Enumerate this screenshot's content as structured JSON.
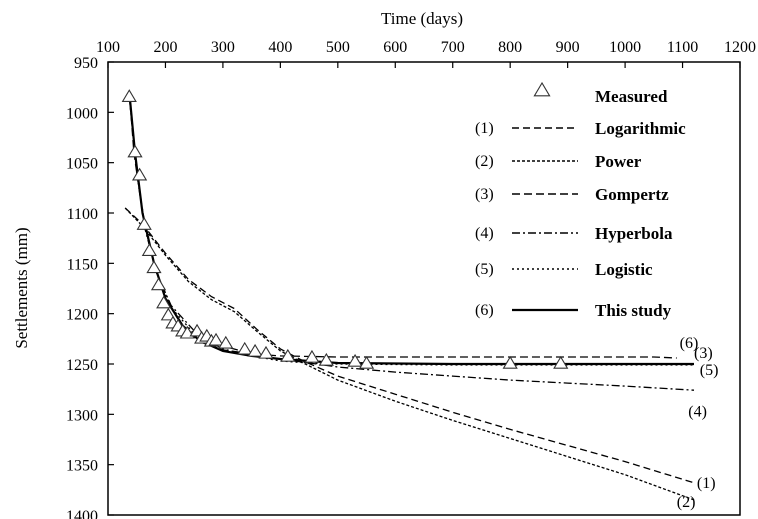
{
  "chart_data": {
    "type": "line",
    "xlabel": "Time (days)",
    "ylabel": "Settlements (mm)",
    "x_axis_position": "top",
    "y_axis_inverted": true,
    "xlim": [
      100,
      1200
    ],
    "ylim": [
      950,
      1400
    ],
    "x_ticks": [
      "100",
      "200",
      "300",
      "400",
      "500",
      "600",
      "700",
      "800",
      "900",
      "1000",
      "1100",
      "1200"
    ],
    "y_ticks": [
      "950",
      "1000",
      "1050",
      "1100",
      "1150",
      "1200",
      "1250",
      "1300",
      "1350",
      "1400"
    ],
    "grid": false,
    "legend_position": "top-right",
    "series": [
      {
        "name": "Measured",
        "marker": "triangle",
        "points": [
          [
            137,
            985
          ],
          [
            147,
            1040
          ],
          [
            155,
            1063
          ],
          [
            163,
            1112
          ],
          [
            172,
            1138
          ],
          [
            180,
            1155
          ],
          [
            188,
            1172
          ],
          [
            197,
            1190
          ],
          [
            205,
            1202
          ],
          [
            213,
            1210
          ],
          [
            222,
            1213
          ],
          [
            230,
            1218
          ],
          [
            238,
            1220
          ],
          [
            255,
            1218
          ],
          [
            263,
            1225
          ],
          [
            272,
            1223
          ],
          [
            280,
            1228
          ],
          [
            288,
            1227
          ],
          [
            305,
            1230
          ],
          [
            338,
            1236
          ],
          [
            356,
            1238
          ],
          [
            375,
            1240
          ],
          [
            413,
            1243
          ],
          [
            455,
            1244
          ],
          [
            480,
            1247
          ],
          [
            530,
            1248
          ],
          [
            550,
            1250
          ],
          [
            800,
            1250
          ],
          [
            888,
            1250
          ]
        ]
      },
      {
        "name": "Logarithmic",
        "number": "(1)",
        "dash": "7,4",
        "points": [
          [
            130,
            1095
          ],
          [
            160,
            1111
          ],
          [
            200,
            1140
          ],
          [
            240,
            1166
          ],
          [
            280,
            1183
          ],
          [
            320,
            1195
          ],
          [
            360,
            1216
          ],
          [
            400,
            1235
          ],
          [
            440,
            1247
          ],
          [
            500,
            1262
          ],
          [
            600,
            1280
          ],
          [
            700,
            1298
          ],
          [
            800,
            1315
          ],
          [
            900,
            1331
          ],
          [
            1000,
            1347
          ],
          [
            1120,
            1368
          ]
        ]
      },
      {
        "name": "Power",
        "number": "(2)",
        "dash": "3,2",
        "points": [
          [
            130,
            1095
          ],
          [
            160,
            1113
          ],
          [
            200,
            1142
          ],
          [
            240,
            1168
          ],
          [
            280,
            1186
          ],
          [
            320,
            1198
          ],
          [
            360,
            1218
          ],
          [
            400,
            1237
          ],
          [
            440,
            1249
          ],
          [
            500,
            1266
          ],
          [
            600,
            1287
          ],
          [
            700,
            1306
          ],
          [
            800,
            1324
          ],
          [
            900,
            1342
          ],
          [
            1000,
            1360
          ],
          [
            1120,
            1385
          ]
        ]
      },
      {
        "name": "Gompertz",
        "number": "(3)",
        "dash": "8,4",
        "points": [
          [
            137,
            980
          ],
          [
            145,
            1040
          ],
          [
            160,
            1100
          ],
          [
            180,
            1150
          ],
          [
            200,
            1185
          ],
          [
            230,
            1213
          ],
          [
            260,
            1228
          ],
          [
            300,
            1236
          ],
          [
            350,
            1240
          ],
          [
            400,
            1242
          ],
          [
            500,
            1243
          ],
          [
            700,
            1243
          ],
          [
            900,
            1243
          ],
          [
            1050,
            1243
          ],
          [
            1090,
            1244
          ]
        ]
      },
      {
        "name": "Hyperbola",
        "number": "(4)",
        "dash": "8,3,2,3",
        "points": [
          [
            137,
            985
          ],
          [
            150,
            1060
          ],
          [
            165,
            1117
          ],
          [
            185,
            1160
          ],
          [
            210,
            1192
          ],
          [
            250,
            1217
          ],
          [
            300,
            1232
          ],
          [
            350,
            1240
          ],
          [
            400,
            1245
          ],
          [
            450,
            1249
          ],
          [
            500,
            1253
          ],
          [
            600,
            1258
          ],
          [
            700,
            1262
          ],
          [
            800,
            1266
          ],
          [
            900,
            1269
          ],
          [
            1000,
            1272
          ],
          [
            1120,
            1276
          ]
        ]
      },
      {
        "name": "Logistic",
        "number": "(5)",
        "dash": "2,3",
        "points": [
          [
            137,
            982
          ],
          [
            150,
            1058
          ],
          [
            165,
            1115
          ],
          [
            185,
            1160
          ],
          [
            210,
            1194
          ],
          [
            250,
            1220
          ],
          [
            300,
            1235
          ],
          [
            350,
            1242
          ],
          [
            400,
            1247
          ],
          [
            450,
            1249
          ],
          [
            500,
            1250
          ],
          [
            700,
            1251
          ],
          [
            900,
            1251
          ],
          [
            1120,
            1251
          ]
        ]
      },
      {
        "name": "This study",
        "number": "(6)",
        "dash": "",
        "points": [
          [
            137,
            980
          ],
          [
            147,
            1040
          ],
          [
            160,
            1100
          ],
          [
            180,
            1150
          ],
          [
            200,
            1185
          ],
          [
            230,
            1212
          ],
          [
            260,
            1227
          ],
          [
            300,
            1237
          ],
          [
            350,
            1242
          ],
          [
            400,
            1245
          ],
          [
            450,
            1247
          ],
          [
            500,
            1249
          ],
          [
            700,
            1250
          ],
          [
            900,
            1250
          ],
          [
            1120,
            1250
          ]
        ]
      }
    ],
    "curve_labels": [
      {
        "text": "(1)",
        "x": 1125,
        "y": 1368
      },
      {
        "text": "(2)",
        "x": 1090,
        "y": 1387
      },
      {
        "text": "(3)",
        "x": 1120,
        "y": 1239
      },
      {
        "text": "(4)",
        "x": 1110,
        "y": 1297
      },
      {
        "text": "(5)",
        "x": 1130,
        "y": 1256
      },
      {
        "text": "(6)",
        "x": 1095,
        "y": 1229
      }
    ]
  }
}
